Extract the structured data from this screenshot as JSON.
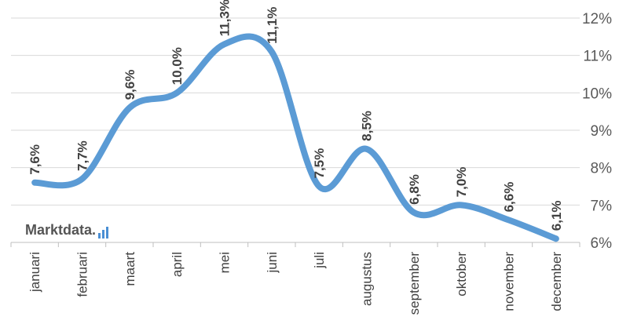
{
  "chart_data": {
    "type": "line",
    "categories": [
      "januari",
      "februari",
      "maart",
      "april",
      "mei",
      "juni",
      "juli",
      "augustus",
      "september",
      "oktober",
      "november",
      "december"
    ],
    "series": [
      {
        "values": [
          7.6,
          7.7,
          9.6,
          10.0,
          11.3,
          11.1,
          7.5,
          8.5,
          6.8,
          7.0,
          6.6,
          6.1
        ],
        "labels": [
          "7,6%",
          "7,7%",
          "9,6%",
          "10,0%",
          "11,3%",
          "11,1%",
          "7,5%",
          "8,5%",
          "6,8%",
          "7,0%",
          "6,6%",
          "6,1%"
        ]
      }
    ],
    "ylim": [
      6,
      12
    ],
    "yticks": [
      6,
      7,
      8,
      9,
      10,
      11,
      12
    ],
    "ytick_labels": [
      "6%",
      "7%",
      "8%",
      "9%",
      "10%",
      "11%",
      "12%"
    ],
    "y_axis_position": "right",
    "grid": true,
    "smooth": true,
    "line_color": "#5b9bd5"
  },
  "watermark": {
    "text": "Marktdata",
    "accent_color": "#4a8fd4"
  }
}
